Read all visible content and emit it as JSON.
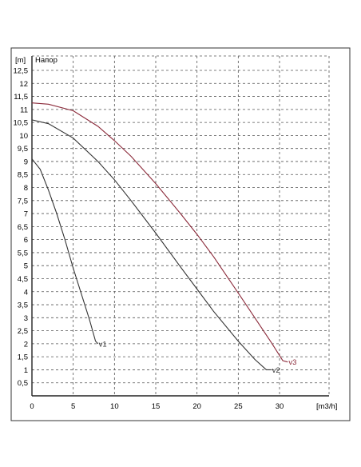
{
  "chart_data": {
    "type": "line",
    "title": "Напор",
    "ylabel": "[m]",
    "xlabel": "[m3/h]",
    "xlim": [
      0,
      33
    ],
    "ylim": [
      0,
      13
    ],
    "x_ticks": [
      0,
      5,
      10,
      15,
      20,
      25,
      30
    ],
    "x_tick_labels": [
      "0",
      "5",
      "10",
      "15",
      "20",
      "25",
      "30"
    ],
    "y_ticks": [
      0.5,
      1,
      1.5,
      2,
      2.5,
      3,
      3.5,
      4,
      4.5,
      5,
      5.5,
      6,
      6.5,
      7,
      7.5,
      8,
      8.5,
      9,
      9.5,
      10,
      10.5,
      11,
      11.5,
      12,
      12.5
    ],
    "y_tick_labels": [
      "0,5",
      "1",
      "1,5",
      "2",
      "2,5",
      "3",
      "3,5",
      "4",
      "4,5",
      "5",
      "5,5",
      "6",
      "6,5",
      "7",
      "7,5",
      "8",
      "8,5",
      "9",
      "9,5",
      "10",
      "10,5",
      "11",
      "11,5",
      "12",
      "12,5"
    ],
    "grid": true,
    "series": [
      {
        "name": "v1",
        "color": "#333333",
        "x": [
          0,
          1,
          2,
          3,
          4,
          5,
          6,
          7,
          7.7,
          8.0
        ],
        "y": [
          9.1,
          8.7,
          7.9,
          7.0,
          6.0,
          4.9,
          3.9,
          2.9,
          2.1,
          2.0
        ]
      },
      {
        "name": "v2",
        "color": "#333333",
        "x": [
          0,
          2,
          5,
          8,
          10,
          12,
          15,
          18,
          20,
          22,
          25,
          27,
          28.4,
          29.0
        ],
        "y": [
          10.6,
          10.45,
          9.9,
          9.0,
          8.3,
          7.5,
          6.25,
          4.95,
          4.1,
          3.25,
          2.1,
          1.4,
          1.0,
          1.0
        ]
      },
      {
        "name": "v3",
        "color": "#8b2a3a",
        "x": [
          0,
          2,
          5,
          8,
          10,
          12,
          15,
          18,
          20,
          22,
          25,
          27,
          29,
          30.4,
          31.0
        ],
        "y": [
          11.25,
          11.2,
          10.95,
          10.35,
          9.8,
          9.2,
          8.15,
          7.0,
          6.2,
          5.35,
          3.95,
          3.0,
          2.05,
          1.35,
          1.3
        ]
      }
    ]
  }
}
